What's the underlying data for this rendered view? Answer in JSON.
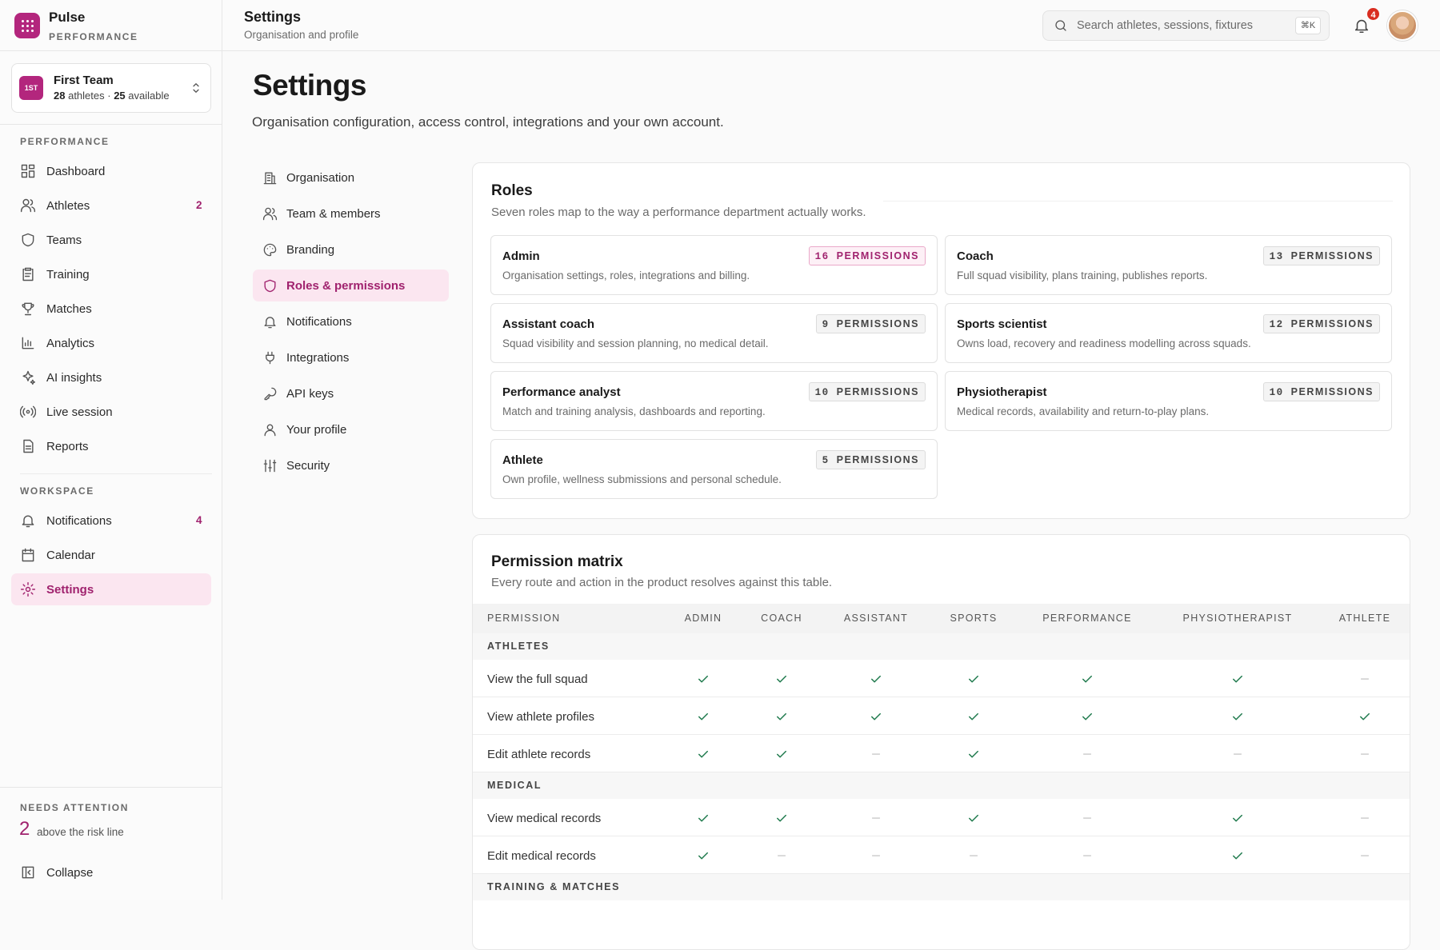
{
  "sidebar": {
    "brand": "Pulse",
    "brand_sub": "PERFORMANCE",
    "team": {
      "badge": "1ST",
      "name": "First Team",
      "athletes": 28,
      "athletes_text": "athletes ·",
      "available": 25,
      "available_text": "available"
    },
    "sections": [
      {
        "label": "PERFORMANCE",
        "items": [
          {
            "label": "Dashboard"
          },
          {
            "label": "Athletes",
            "badge": 2
          },
          {
            "label": "Teams"
          },
          {
            "label": "Training"
          },
          {
            "label": "Matches"
          },
          {
            "label": "Analytics"
          },
          {
            "label": "AI insights"
          },
          {
            "label": "Live session"
          },
          {
            "label": "Reports"
          }
        ]
      },
      {
        "label": "WORKSPACE",
        "items": [
          {
            "label": "Notifications",
            "badge": 4
          },
          {
            "label": "Calendar"
          },
          {
            "label": "Settings",
            "active": true
          }
        ]
      }
    ],
    "attention": {
      "label": "NEEDS ATTENTION",
      "count": 2,
      "text": "above the risk line"
    },
    "collapse": "Collapse"
  },
  "header": {
    "title": "Settings",
    "subtitle": "Organisation and profile",
    "search": "Search athletes, sessions, fixtures",
    "shortcut": "⌘K",
    "notifications": 4
  },
  "page": {
    "title": "Settings",
    "subtitle": "Organisation configuration, access control, integrations and your own account.",
    "nav": [
      {
        "label": "Organisation"
      },
      {
        "label": "Team & members"
      },
      {
        "label": "Branding"
      },
      {
        "label": "Roles & permissions",
        "active": true
      },
      {
        "label": "Notifications"
      },
      {
        "label": "Integrations"
      },
      {
        "label": "API keys"
      },
      {
        "label": "Your profile"
      },
      {
        "label": "Security"
      }
    ],
    "roles": {
      "title": "Roles",
      "subtitle": "Seven roles map to the way a performance department actually works.",
      "badge_text": "PERMISSIONS",
      "items": [
        {
          "name": "Admin",
          "permissions": 16,
          "description": "Organisation settings, roles, integrations and billing.",
          "highlight": true
        },
        {
          "name": "Coach",
          "permissions": 13,
          "description": "Full squad visibility, plans training, publishes reports."
        },
        {
          "name": "Assistant coach",
          "permissions": 9,
          "description": "Squad visibility and session planning, no medical detail."
        },
        {
          "name": "Sports scientist",
          "permissions": 12,
          "description": "Owns load, recovery and readiness modelling across squads."
        },
        {
          "name": "Performance analyst",
          "permissions": 10,
          "description": "Match and training analysis, dashboards and reporting."
        },
        {
          "name": "Physiotherapist",
          "permissions": 10,
          "description": "Medical records, availability and return-to-play plans."
        },
        {
          "name": "Athlete",
          "permissions": 5,
          "description": "Own profile, wellness submissions and personal schedule."
        }
      ]
    },
    "matrix": {
      "title": "Permission matrix",
      "subtitle": "Every route and action in the product resolves against this table.",
      "columns": [
        "PERMISSION",
        "ADMIN",
        "COACH",
        "ASSISTANT",
        "SPORTS",
        "PERFORMANCE",
        "PHYSIOTHERAPIST",
        "ATHLETE"
      ],
      "groups": [
        {
          "name": "ATHLETES",
          "rows": [
            {
              "label": "View the full squad",
              "values": [
                true,
                true,
                true,
                true,
                true,
                true,
                false
              ]
            },
            {
              "label": "View athlete profiles",
              "values": [
                true,
                true,
                true,
                true,
                true,
                true,
                true
              ]
            },
            {
              "label": "Edit athlete records",
              "values": [
                true,
                true,
                false,
                true,
                false,
                false,
                false
              ]
            }
          ]
        },
        {
          "name": "MEDICAL",
          "rows": [
            {
              "label": "View medical records",
              "values": [
                true,
                true,
                false,
                true,
                false,
                true,
                false
              ]
            },
            {
              "label": "Edit medical records",
              "values": [
                true,
                false,
                false,
                false,
                false,
                true,
                false
              ]
            }
          ]
        },
        {
          "name": "TRAINING & MATCHES",
          "rows": []
        }
      ]
    }
  }
}
